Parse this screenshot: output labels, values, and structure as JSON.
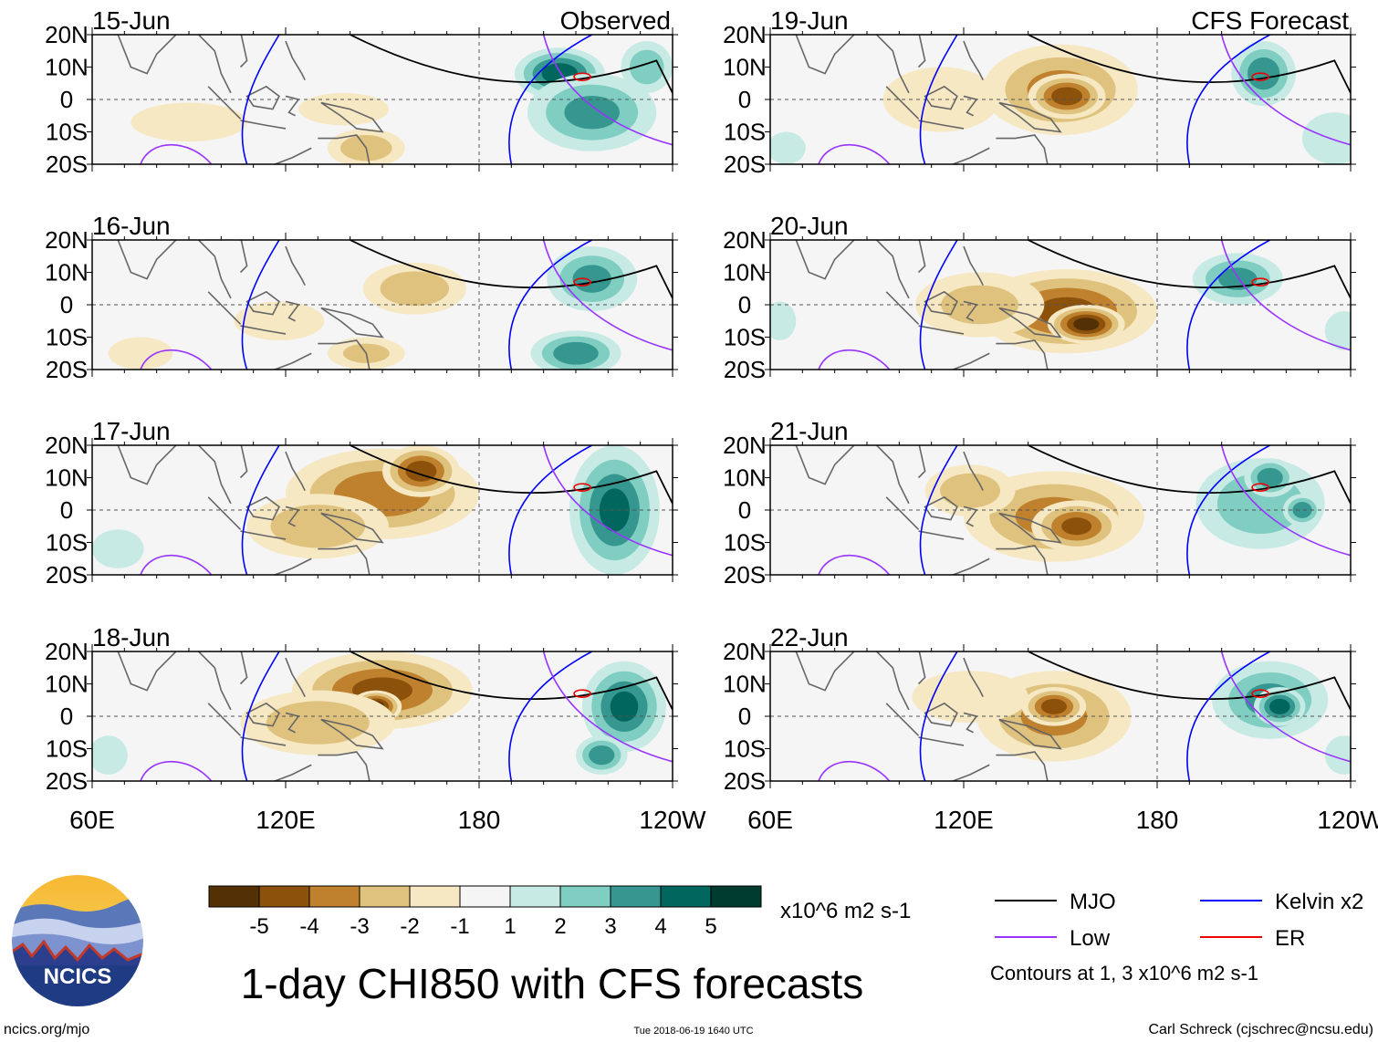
{
  "chart_data": {
    "type": "heatmap",
    "variable": "CHI850",
    "title": "1-day CHI850 with CFS forecasts",
    "units": "x10^6 m2 s-1",
    "observed_label": "Observed",
    "forecast_label": "CFS Forecast",
    "x_ticks": [
      "60E",
      "120E",
      "180",
      "120W"
    ],
    "y_ticks": [
      "20N",
      "10N",
      "0",
      "10S",
      "20S"
    ],
    "lon_range": [
      60,
      240
    ],
    "lat_range": [
      -20,
      20
    ],
    "colorbar": {
      "levels": [
        "-5",
        "-4",
        "-3",
        "-2",
        "-1",
        "1",
        "2",
        "3",
        "4",
        "5"
      ],
      "colors": [
        "#543005",
        "#8c510a",
        "#bf812d",
        "#dfc27d",
        "#f6e8c3",
        "#f5f5f5",
        "#c7eae5",
        "#80cdc1",
        "#35978f",
        "#01665e",
        "#003c30"
      ]
    },
    "legend": [
      {
        "name": "MJO",
        "color": "#000000"
      },
      {
        "name": "Kelvin x2",
        "color": "#0000ff"
      },
      {
        "name": "Low",
        "color": "#9933ff"
      },
      {
        "name": "ER",
        "color": "#ee0000"
      }
    ],
    "contour_note": "Contours at 1, 3 x10^6 m2 s-1",
    "panels": [
      {
        "date": "15-Jun",
        "column": "observed",
        "anomalies": [
          {
            "lon": 90,
            "lat": -7,
            "value": -1.5,
            "rlon": 18,
            "rlat": 6
          },
          {
            "lon": 145,
            "lat": -15,
            "value": -2.5,
            "rlon": 12,
            "rlat": 6
          },
          {
            "lon": 138,
            "lat": -3,
            "value": -1.5,
            "rlon": 14,
            "rlat": 5
          },
          {
            "lon": 205,
            "lat": 8,
            "value": 4.5,
            "rlon": 14,
            "rlat": 8
          },
          {
            "lon": 215,
            "lat": -4,
            "value": 3,
            "rlon": 20,
            "rlat": 12
          },
          {
            "lon": 232,
            "lat": 10,
            "value": 2.5,
            "rlon": 8,
            "rlat": 8
          }
        ]
      },
      {
        "date": "16-Jun",
        "column": "observed",
        "anomalies": [
          {
            "lon": 160,
            "lat": 5,
            "value": -2.5,
            "rlon": 16,
            "rlat": 8
          },
          {
            "lon": 118,
            "lat": -5,
            "value": -1.5,
            "rlon": 14,
            "rlat": 6
          },
          {
            "lon": 145,
            "lat": -15,
            "value": -2,
            "rlon": 12,
            "rlat": 5
          },
          {
            "lon": 215,
            "lat": 8,
            "value": 3,
            "rlon": 14,
            "rlat": 10
          },
          {
            "lon": 210,
            "lat": -15,
            "value": 3.5,
            "rlon": 14,
            "rlat": 7
          },
          {
            "lon": 75,
            "lat": -15,
            "value": -1,
            "rlon": 10,
            "rlat": 5
          }
        ]
      },
      {
        "date": "17-Jun",
        "column": "observed",
        "anomalies": [
          {
            "lon": 150,
            "lat": 5,
            "value": -3.5,
            "rlon": 30,
            "rlat": 14
          },
          {
            "lon": 162,
            "lat": 12,
            "value": -4.5,
            "rlon": 12,
            "rlat": 8
          },
          {
            "lon": 130,
            "lat": -5,
            "value": -2.5,
            "rlon": 22,
            "rlat": 10
          },
          {
            "lon": 222,
            "lat": 0,
            "value": 4,
            "rlon": 14,
            "rlat": 20
          },
          {
            "lon": 68,
            "lat": -12,
            "value": 1.5,
            "rlon": 8,
            "rlat": 6
          }
        ]
      },
      {
        "date": "18-Jun",
        "column": "observed",
        "anomalies": [
          {
            "lon": 150,
            "lat": 8,
            "value": -4,
            "rlon": 28,
            "rlat": 12
          },
          {
            "lon": 148,
            "lat": 3,
            "value": -5.5,
            "rlon": 8,
            "rlat": 5
          },
          {
            "lon": 130,
            "lat": -2,
            "value": -2.5,
            "rlon": 24,
            "rlat": 10
          },
          {
            "lon": 225,
            "lat": 3,
            "value": 4,
            "rlon": 13,
            "rlat": 14
          },
          {
            "lon": 218,
            "lat": -12,
            "value": 3.5,
            "rlon": 8,
            "rlat": 6
          },
          {
            "lon": 65,
            "lat": -12,
            "value": 1.5,
            "rlon": 6,
            "rlat": 6
          }
        ]
      },
      {
        "date": "19-Jun",
        "column": "forecast",
        "anomalies": [
          {
            "lon": 150,
            "lat": 3,
            "value": -3,
            "rlon": 24,
            "rlat": 14
          },
          {
            "lon": 152,
            "lat": 1,
            "value": -4.5,
            "rlon": 12,
            "rlat": 7
          },
          {
            "lon": 113,
            "lat": 0,
            "value": -1.2,
            "rlon": 18,
            "rlat": 10
          },
          {
            "lon": 213,
            "lat": 8,
            "value": 3.5,
            "rlon": 10,
            "rlat": 10
          },
          {
            "lon": 235,
            "lat": -12,
            "value": 1.5,
            "rlon": 10,
            "rlat": 8
          },
          {
            "lon": 65,
            "lat": -15,
            "value": 1,
            "rlon": 6,
            "rlat": 5
          }
        ]
      },
      {
        "date": "20-Jun",
        "column": "forecast",
        "anomalies": [
          {
            "lon": 152,
            "lat": -2,
            "value": -4,
            "rlon": 28,
            "rlat": 13
          },
          {
            "lon": 158,
            "lat": -6,
            "value": -5.5,
            "rlon": 12,
            "rlat": 6
          },
          {
            "lon": 125,
            "lat": 0,
            "value": -2,
            "rlon": 20,
            "rlat": 10
          },
          {
            "lon": 205,
            "lat": 8,
            "value": 3,
            "rlon": 14,
            "rlat": 8
          },
          {
            "lon": 238,
            "lat": -8,
            "value": 1,
            "rlon": 6,
            "rlat": 6
          },
          {
            "lon": 63,
            "lat": -5,
            "value": 1,
            "rlon": 5,
            "rlat": 6
          }
        ]
      },
      {
        "date": "21-Jun",
        "column": "forecast",
        "anomalies": [
          {
            "lon": 148,
            "lat": -2,
            "value": -3,
            "rlon": 28,
            "rlat": 14
          },
          {
            "lon": 155,
            "lat": -5,
            "value": -4,
            "rlon": 14,
            "rlat": 8
          },
          {
            "lon": 122,
            "lat": 6,
            "value": -2.5,
            "rlon": 14,
            "rlat": 8
          },
          {
            "lon": 212,
            "lat": 2,
            "value": 2.5,
            "rlon": 20,
            "rlat": 14
          },
          {
            "lon": 215,
            "lat": 10,
            "value": 3.5,
            "rlon": 8,
            "rlat": 6
          },
          {
            "lon": 225,
            "lat": 0,
            "value": 3.5,
            "rlon": 6,
            "rlat": 5
          }
        ]
      },
      {
        "date": "22-Jun",
        "column": "forecast",
        "anomalies": [
          {
            "lon": 148,
            "lat": 0,
            "value": -3,
            "rlon": 24,
            "rlat": 14
          },
          {
            "lon": 148,
            "lat": 3,
            "value": -4.5,
            "rlon": 10,
            "rlat": 6
          },
          {
            "lon": 122,
            "lat": 6,
            "value": -1.5,
            "rlon": 18,
            "rlat": 8
          },
          {
            "lon": 215,
            "lat": 5,
            "value": 3,
            "rlon": 18,
            "rlat": 12
          },
          {
            "lon": 218,
            "lat": 3,
            "value": 4.5,
            "rlon": 8,
            "rlat": 6
          },
          {
            "lon": 238,
            "lat": -12,
            "value": 1,
            "rlon": 6,
            "rlat": 6
          }
        ]
      }
    ]
  },
  "logo": {
    "text": "NCICS"
  },
  "footer": {
    "url": "ncics.org/mjo",
    "timestamp": "Tue 2018-06-19 1640 UTC",
    "credit": "Carl Schreck (cjschrec@ncsu.edu)"
  }
}
